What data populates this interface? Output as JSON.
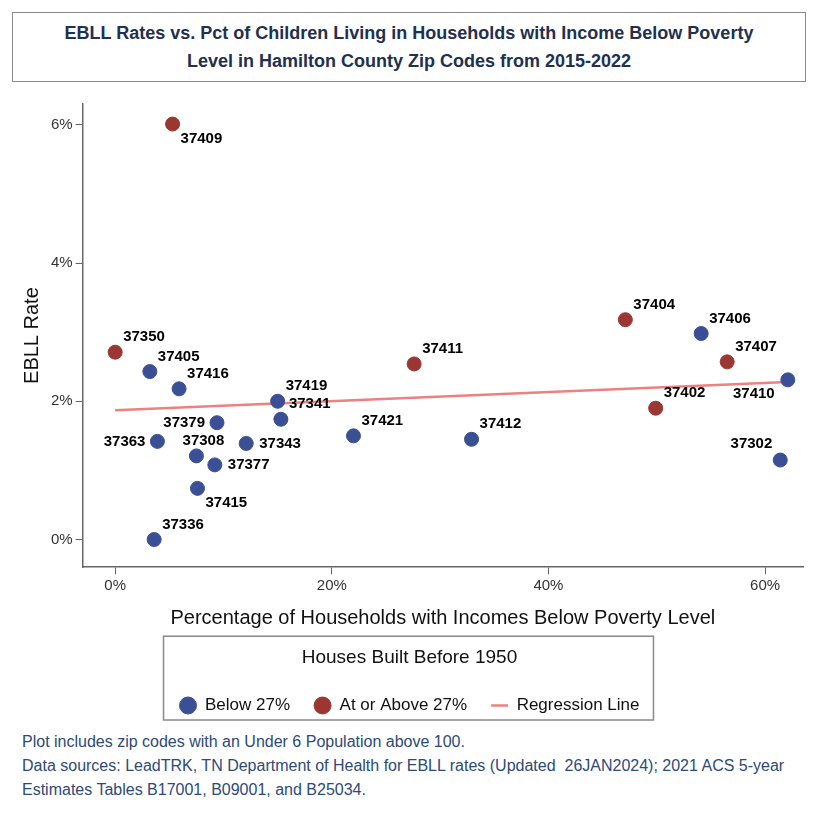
{
  "chart_data": {
    "type": "scatter",
    "title": "EBLL Rates vs. Pct of Children Living in Households with Income Below Poverty\nLevel in Hamilton County Zip Codes from 2015-2022",
    "x_label": "Percentage of Households with Incomes Below Poverty Level",
    "y_label": "EBLL Rate",
    "xlim": [
      -3,
      63.5
    ],
    "xticks": [
      {
        "value": 0,
        "label": "0%"
      },
      {
        "value": 20,
        "label": "20%"
      },
      {
        "value": 40,
        "label": "40%"
      },
      {
        "value": 60,
        "label": "60%"
      }
    ],
    "ylim": [
      -0.4,
      6.3
    ],
    "yticks": [
      {
        "value": 0,
        "label": "0%"
      },
      {
        "value": 2,
        "label": "2%"
      },
      {
        "value": 4,
        "label": "4%"
      },
      {
        "value": 6,
        "label": "6%"
      }
    ],
    "grid": false,
    "legend": "bottom",
    "legend_title": "Houses Built Before 1950",
    "series": [
      {
        "name": "Below 27%",
        "color": "#3b4f94",
        "marker": "circle",
        "x": [
          3.2,
          5.9,
          15.0,
          15.3,
          9.4,
          3.9,
          7.5,
          12.1,
          9.2,
          7.6,
          3.6,
          22.0,
          32.9,
          54.1,
          62.1,
          61.4
        ],
        "values": [
          2.43,
          2.18,
          2.0,
          1.74,
          1.69,
          1.42,
          1.21,
          1.39,
          1.08,
          0.74,
          0,
          1.5,
          1.45,
          2.98,
          2.31,
          1.15
        ],
        "labels": [
          "37405",
          "37416",
          "37419",
          "37341",
          "37379",
          "37363",
          "37308",
          "37343",
          "37377",
          "37415",
          "37336",
          "37421",
          "37412",
          "37406",
          "37410",
          "37302"
        ]
      },
      {
        "name": "At or Above 27%",
        "color": "#9b3632",
        "marker": "circle",
        "x": [
          5.3,
          0,
          27.6,
          47.1,
          56.5,
          49.9
        ],
        "values": [
          6.01,
          2.71,
          2.54,
          3.18,
          2.57,
          1.9
        ],
        "labels": [
          "37409",
          "37350",
          "37411",
          "37404",
          "37407",
          "37402"
        ]
      },
      {
        "name": "Regression Line",
        "color": "#f08080",
        "type": "line",
        "line_style": "solid",
        "x": [
          0,
          62.1
        ],
        "values": [
          1.87,
          2.28
        ]
      }
    ],
    "notes": [
      "Plot includes zip codes with an Under 6 Population above 100.",
      "Data sources: LeadTRK, TN Department of Health for EBLL rates (Updated  26JAN2024); 2021 ACS 5-year Estimates Tables B17001, B09001, and B25034."
    ]
  }
}
